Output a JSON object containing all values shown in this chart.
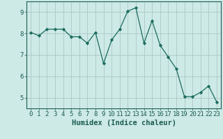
{
  "x": [
    0,
    1,
    2,
    3,
    4,
    5,
    6,
    7,
    8,
    9,
    10,
    11,
    12,
    13,
    14,
    15,
    16,
    17,
    18,
    19,
    20,
    21,
    22,
    23
  ],
  "y": [
    8.05,
    7.9,
    8.2,
    8.2,
    8.2,
    7.85,
    7.85,
    7.55,
    8.05,
    6.6,
    7.7,
    8.2,
    9.05,
    9.2,
    7.55,
    8.6,
    7.45,
    6.9,
    6.35,
    5.05,
    5.05,
    5.25,
    5.55,
    4.8
  ],
  "line_color": "#1a6b5e",
  "marker": "D",
  "marker_size": 2.2,
  "bg_color": "#ceeae6",
  "grid_color_major": "#adc8c4",
  "grid_color_minor": "#bdd8d4",
  "xlabel": "Humidex (Indice chaleur)",
  "ylim": [
    4.5,
    9.5
  ],
  "xlim": [
    -0.5,
    23.5
  ],
  "yticks": [
    5,
    6,
    7,
    8,
    9
  ],
  "xticks": [
    0,
    1,
    2,
    3,
    4,
    5,
    6,
    7,
    8,
    9,
    10,
    11,
    12,
    13,
    14,
    15,
    16,
    17,
    18,
    19,
    20,
    21,
    22,
    23
  ],
  "xlabel_fontsize": 7.5,
  "tick_fontsize": 6.5,
  "axis_color": "#1a5c52"
}
